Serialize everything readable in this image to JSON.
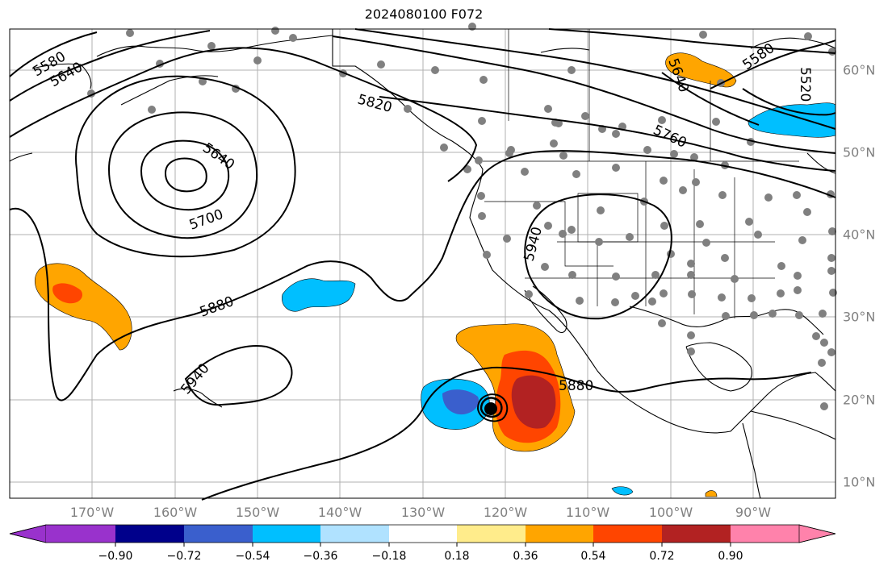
{
  "title": "2024080100 F072",
  "lon_labels": [
    "170°W",
    "160°W",
    "150°W",
    "140°W",
    "130°W",
    "120°W",
    "110°W",
    "100°W",
    "90°W"
  ],
  "lat_labels": [
    "60°N",
    "50°N",
    "40°N",
    "30°N",
    "20°N",
    "10°N"
  ],
  "contour_labels": [
    "5580",
    "5640",
    "5700",
    "5820",
    "5640",
    "5700",
    "5880",
    "5940",
    "5940",
    "5880",
    "5640",
    "5580",
    "5520",
    "5760"
  ],
  "colorbar": {
    "ticks": [
      "−0.90",
      "−0.72",
      "−0.54",
      "−0.36",
      "−0.18",
      "0.18",
      "0.36",
      "0.54",
      "0.72",
      "0.90"
    ],
    "colors": [
      "#9932cc",
      "#00008b",
      "#3a5fcd",
      "#00bfff",
      "#b0e2ff",
      "#ffffff",
      "#ffec8b",
      "#ffa500",
      "#ff4500",
      "#b22222",
      "#ff82ab"
    ]
  },
  "fill_colors": {
    "orange": "#ffa500",
    "orangered": "#ff4500",
    "firebrick": "#b22222",
    "deepskyblue": "#00bfff",
    "royalblue": "#3a5fcd",
    "black": "#000000"
  }
}
